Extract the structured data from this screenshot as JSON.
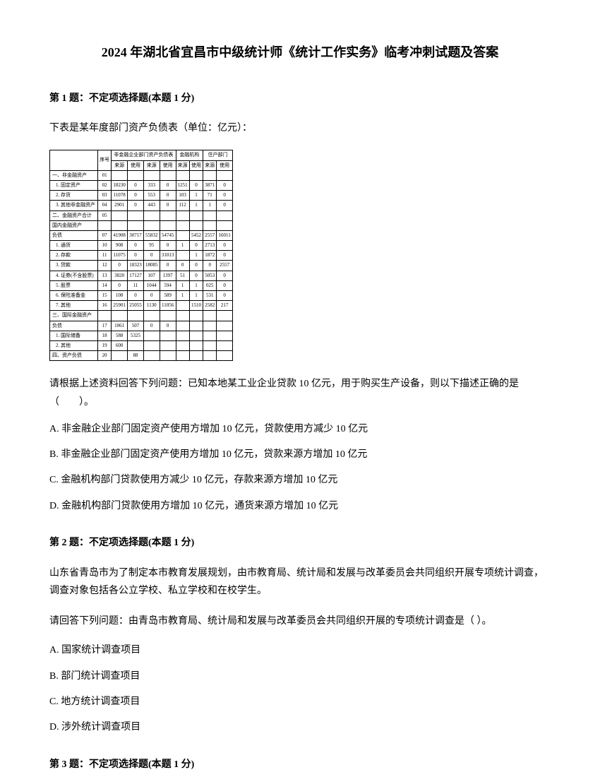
{
  "title": "2024 年湖北省宜昌市中级统计师《统计工作实务》临考冲刺试题及答案",
  "q1": {
    "header": "第 1 题：不定项选择题(本题 1 分)",
    "intro": "下表是某年度部门资产负债表（单位：亿元）：",
    "prompt": "请根据上述资料回答下列问题：已知本地某工业企业贷款 10 亿元，用于购买生产设备，则以下描述正确的是（　　）。",
    "options": {
      "a": "A. 非金融企业部门固定资产使用方增加 10 亿元，贷款使用方减少 10 亿元",
      "b": "B. 非金融企业部门固定资产使用方增加 10 亿元，贷款来源方增加 10 亿元",
      "c": "C. 金融机构部门贷款使用方减少 10 亿元，存款来源方增加 10 亿元",
      "d": "D. 金融机构部门贷款使用方增加 10 亿元，通货来源方增加 10 亿元"
    },
    "table": {
      "header_group1": "非金融企业部门资产负债表",
      "header_group2": "金融机构",
      "header_group3": "住户部门",
      "cols": [
        "序号",
        "来源",
        "使用",
        "来源",
        "使用",
        "来源",
        "使用",
        "来源",
        "使用"
      ],
      "rows": [
        {
          "label": "一、非金融资产",
          "num": "01",
          "vals": [
            "",
            "",
            "",
            "",
            "",
            "",
            "",
            ""
          ]
        },
        {
          "label": "1. 固定资产",
          "num": "02",
          "vals": [
            "18230",
            "0",
            "333",
            "0",
            "1251",
            "0",
            "3871",
            "0"
          ]
        },
        {
          "label": "2. 存货",
          "num": "03",
          "vals": [
            "11078",
            "0",
            "553",
            "0",
            "103",
            "1",
            "71",
            "0"
          ]
        },
        {
          "label": "3. 其他非金融资产",
          "num": "04",
          "vals": [
            "2901",
            "0",
            "443",
            "0",
            "112",
            "1",
            "1",
            "0"
          ]
        },
        {
          "label": "二、金融资产合计",
          "num": "05",
          "vals": [
            "",
            "",
            "",
            "",
            "",
            "",
            "",
            ""
          ]
        },
        {
          "label": "国内金融资产",
          "num": "",
          "vals": [
            "",
            "",
            "",
            "",
            "",
            "",
            "",
            ""
          ]
        },
        {
          "label": "负债",
          "num": "07",
          "vals": [
            "41908",
            "30717",
            "55832",
            "54745",
            "",
            "5452",
            "2557",
            "16011"
          ]
        },
        {
          "label": "1. 通货",
          "num": "10",
          "vals": [
            "908",
            "0",
            "95",
            "0",
            "1",
            "0",
            "2713",
            "0"
          ]
        },
        {
          "label": "2. 存款",
          "num": "11",
          "vals": [
            "11075",
            "0",
            "0",
            "31013",
            "",
            "1",
            "1872",
            "0"
          ]
        },
        {
          "label": "3. 贷款",
          "num": "12",
          "vals": [
            "0",
            "18323",
            "18085",
            "0",
            "0",
            "0",
            "0",
            "2557"
          ]
        },
        {
          "label": "4. 证券(不含股票)",
          "num": "13",
          "vals": [
            "3820",
            "17127",
            "107",
            "1397",
            "51",
            "0",
            "5053",
            "0"
          ]
        },
        {
          "label": "5. 股票",
          "num": "14",
          "vals": [
            "0",
            "11",
            "1044",
            "594",
            "1",
            "1",
            "025",
            "0"
          ]
        },
        {
          "label": "6. 保险准备金",
          "num": "15",
          "vals": [
            "108",
            "0",
            "0",
            "589",
            "1",
            "1",
            "531",
            "0"
          ]
        },
        {
          "label": "7. 其他",
          "num": "16",
          "vals": [
            "25901",
            "25055",
            "1130",
            "11056",
            "",
            "1510",
            "2582",
            "217"
          ]
        },
        {
          "label": "三、国际金融资产",
          "num": "",
          "vals": [
            "",
            "",
            "",
            "",
            "",
            "",
            "",
            ""
          ]
        },
        {
          "label": "负债",
          "num": "17",
          "vals": [
            "1061",
            "507",
            "0",
            "0",
            "",
            "",
            "",
            ""
          ]
        },
        {
          "label": "1. 国际储备",
          "num": "18",
          "vals": [
            "588",
            "5325",
            "",
            "",
            "",
            "",
            "",
            ""
          ]
        },
        {
          "label": "2. 其他",
          "num": "19",
          "vals": [
            "600",
            "",
            "",
            "",
            "",
            "",
            "",
            ""
          ]
        },
        {
          "label": "四、资产负债",
          "num": "20",
          "vals": [
            "",
            "88",
            "",
            "",
            "",
            "",
            "",
            ""
          ]
        }
      ]
    }
  },
  "q2": {
    "header": "第 2 题：不定项选择题(本题 1 分)",
    "text1": "山东省青岛市为了制定本市教育发展规划，由市教育局、统计局和发展与改革委员会共同组织开展专项统计调查，调查对象包括各公立学校、私立学校和在校学生。",
    "text2": "请回答下列问题：由青岛市教育局、统计局和发展与改革委员会共同组织开展的专项统计调查是（  ）。",
    "options": {
      "a": "A. 国家统计调查项目",
      "b": "B. 部门统计调查项目",
      "c": "C. 地方统计调查项目",
      "d": "D. 涉外统计调查项目"
    }
  },
  "q3": {
    "header": "第 3 题：不定项选择题(本题 1 分)"
  }
}
